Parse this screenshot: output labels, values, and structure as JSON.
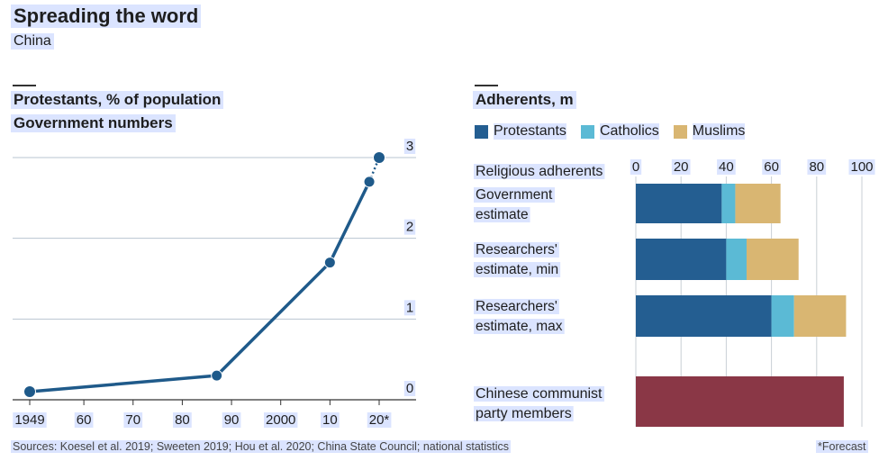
{
  "header": {
    "title": "Spreading the word",
    "subtitle": "China"
  },
  "chart_data": [
    {
      "type": "line",
      "title": "Protestants, % of population",
      "subtitle": "Government numbers",
      "x": [
        1949,
        1987,
        2010,
        2018,
        2020
      ],
      "x_tick_values": [
        1949,
        1960,
        1970,
        1980,
        1990,
        2000,
        2010,
        2020
      ],
      "x_tick_labels": [
        "1949",
        "60",
        "70",
        "80",
        "90",
        "2000",
        "10",
        "20*"
      ],
      "series": [
        {
          "values": [
            0.1,
            0.3,
            1.7,
            2.7,
            3.0
          ],
          "color": "#1f5a8a"
        }
      ],
      "y_ticks": [
        0,
        1,
        2,
        3
      ],
      "xlim": [
        1946,
        2021
      ],
      "ylim": [
        0,
        3.2
      ],
      "grid": true
    },
    {
      "type": "bar",
      "orientation": "horizontal",
      "stacked": true,
      "title": "Adherents, m",
      "category_header": "Religious adherents",
      "categories": [
        "Government estimate",
        "Researchers' estimate, min",
        "Researchers' estimate, max",
        "Chinese communist party members"
      ],
      "category_lines": [
        [
          "Government",
          "estimate"
        ],
        [
          "Researchers'",
          "estimate, min"
        ],
        [
          "Researchers'",
          "estimate, max"
        ],
        [
          "Chinese communist",
          "party members"
        ]
      ],
      "series": [
        {
          "name": "Protestants",
          "color": "#245e91",
          "values": [
            38,
            40,
            60,
            null
          ]
        },
        {
          "name": "Catholics",
          "color": "#5bbad5",
          "values": [
            6,
            9,
            10,
            null
          ]
        },
        {
          "name": "Muslims",
          "color": "#d9b672",
          "values": [
            20,
            23,
            23,
            null
          ]
        },
        {
          "color": "#8a3746",
          "values": [
            null,
            null,
            null,
            92
          ]
        }
      ],
      "x_ticks": [
        "0",
        "20",
        "40",
        "60",
        "80",
        "100"
      ],
      "xlim": [
        0,
        100
      ],
      "grid": true
    }
  ],
  "notes": {
    "sources": "Sources: Koesel et al. 2019; Sweeten 2019; Hou et al. 2020; China State Council; national statistics",
    "footnote": "*Forecast"
  }
}
